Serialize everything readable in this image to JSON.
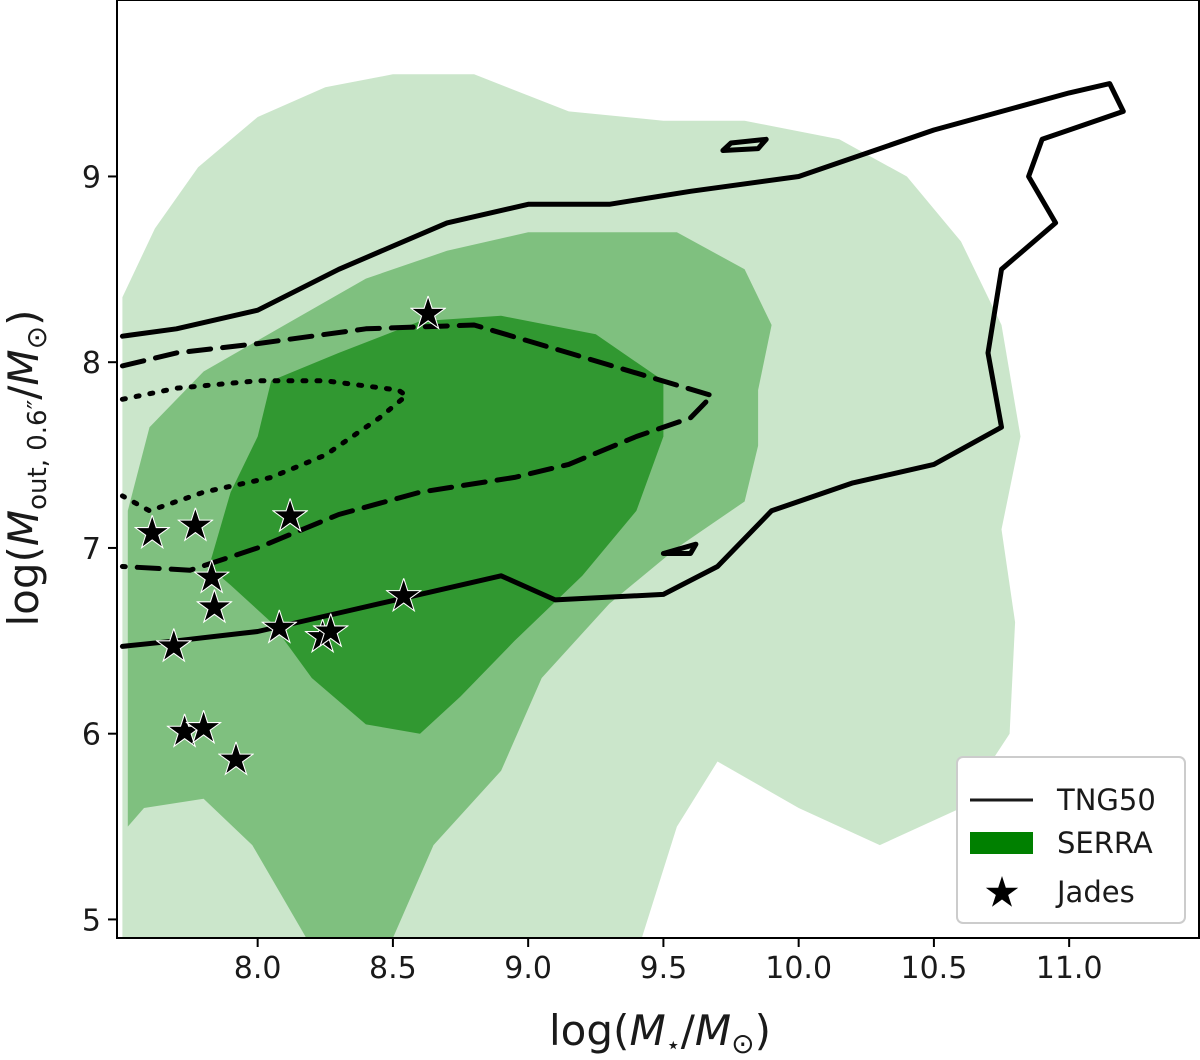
{
  "chart_data": {
    "type": "scatter",
    "xlabel": {
      "prefix": "log(",
      "var": "M",
      "sub": "⋆",
      "mid": "/",
      "var2": "M",
      "sub2": "⊙",
      "suffix": ")"
    },
    "ylabel": {
      "prefix": "log(",
      "var": "M",
      "sub": "out, 0.6″",
      "mid": "/",
      "var2": "M",
      "sub2": "⊙",
      "suffix": ")"
    },
    "xlim": [
      7.48,
      11.48
    ],
    "ylim": [
      4.9,
      9.95
    ],
    "x_ticks": [
      "8.0",
      "8.5",
      "9.0",
      "9.5",
      "10.0",
      "10.5",
      "11.0"
    ],
    "y_ticks": [
      "5",
      "6",
      "7",
      "8",
      "9"
    ],
    "grid": false,
    "legend_position": "lower-right",
    "legend": [
      {
        "label": "TNG50",
        "marker": "line",
        "color": "#1a1a1a"
      },
      {
        "label": "SERRA",
        "marker": "patch",
        "color": "#008000"
      },
      {
        "label": "Jades",
        "marker": "star",
        "color": "#000000"
      }
    ],
    "series": [
      {
        "name": "Jades",
        "marker": "star",
        "color": "#000000",
        "points": [
          [
            7.61,
            7.08
          ],
          [
            7.77,
            7.12
          ],
          [
            8.12,
            7.17
          ],
          [
            7.83,
            6.84
          ],
          [
            7.84,
            6.68
          ],
          [
            7.69,
            6.47
          ],
          [
            8.08,
            6.57
          ],
          [
            8.24,
            6.52
          ],
          [
            8.27,
            6.55
          ],
          [
            8.54,
            6.74
          ],
          [
            8.63,
            8.26
          ],
          [
            7.73,
            6.01
          ],
          [
            7.8,
            6.03
          ],
          [
            7.92,
            5.86
          ]
        ]
      },
      {
        "name": "SERRA",
        "type": "filled-contours",
        "levels": [
          {
            "fill": "#cbe6cb",
            "outline": [
              [
                7.5,
                4.9
              ],
              [
                7.5,
                8.35
              ],
              [
                7.62,
                8.72
              ],
              [
                7.78,
                9.05
              ],
              [
                8.0,
                9.32
              ],
              [
                8.25,
                9.48
              ],
              [
                8.5,
                9.55
              ],
              [
                8.8,
                9.55
              ],
              [
                9.15,
                9.35
              ],
              [
                9.5,
                9.3
              ],
              [
                9.8,
                9.3
              ],
              [
                10.15,
                9.2
              ],
              [
                10.4,
                9.0
              ],
              [
                10.6,
                8.65
              ],
              [
                10.75,
                8.2
              ],
              [
                10.82,
                7.6
              ],
              [
                10.75,
                7.1
              ],
              [
                10.8,
                6.6
              ],
              [
                10.78,
                6.0
              ],
              [
                10.6,
                5.6
              ],
              [
                10.3,
                5.4
              ],
              [
                10.0,
                5.6
              ],
              [
                9.7,
                5.85
              ],
              [
                9.55,
                5.5
              ],
              [
                9.42,
                4.9
              ]
            ]
          },
          {
            "fill": "#7fc07f",
            "outline": [
              [
                7.52,
                5.5
              ],
              [
                7.52,
                7.2
              ],
              [
                7.6,
                7.65
              ],
              [
                7.8,
                7.95
              ],
              [
                8.1,
                8.2
              ],
              [
                8.4,
                8.45
              ],
              [
                8.7,
                8.6
              ],
              [
                9.0,
                8.7
              ],
              [
                9.3,
                8.7
              ],
              [
                9.55,
                8.7
              ],
              [
                9.8,
                8.5
              ],
              [
                9.9,
                8.2
              ],
              [
                9.85,
                7.85
              ],
              [
                9.85,
                7.55
              ],
              [
                9.8,
                7.25
              ],
              [
                9.55,
                7.0
              ],
              [
                9.3,
                6.7
              ],
              [
                9.05,
                6.3
              ],
              [
                8.9,
                5.8
              ],
              [
                8.65,
                5.4
              ],
              [
                8.5,
                4.9
              ],
              [
                8.18,
                4.9
              ],
              [
                7.98,
                5.4
              ],
              [
                7.8,
                5.65
              ],
              [
                7.58,
                5.6
              ]
            ]
          },
          {
            "fill": "#319831",
            "outline": [
              [
                7.82,
                6.9
              ],
              [
                7.9,
                7.3
              ],
              [
                8.0,
                7.6
              ],
              [
                8.05,
                7.9
              ],
              [
                8.3,
                8.05
              ],
              [
                8.6,
                8.22
              ],
              [
                8.9,
                8.25
              ],
              [
                9.25,
                8.15
              ],
              [
                9.5,
                7.9
              ],
              [
                9.5,
                7.6
              ],
              [
                9.4,
                7.2
              ],
              [
                9.2,
                6.85
              ],
              [
                8.95,
                6.5
              ],
              [
                8.75,
                6.2
              ],
              [
                8.6,
                6.0
              ],
              [
                8.4,
                6.05
              ],
              [
                8.2,
                6.3
              ],
              [
                8.05,
                6.6
              ],
              [
                7.9,
                6.8
              ]
            ]
          }
        ]
      },
      {
        "name": "TNG50",
        "type": "line-contours",
        "color": "#000000",
        "contours": [
          {
            "style": "solid",
            "points": [
              [
                7.5,
                8.14
              ],
              [
                7.7,
                8.18
              ],
              [
                8.0,
                8.28
              ],
              [
                8.3,
                8.5
              ],
              [
                8.7,
                8.75
              ],
              [
                9.0,
                8.85
              ],
              [
                9.3,
                8.85
              ],
              [
                9.6,
                8.92
              ],
              [
                10.0,
                9.0
              ],
              [
                10.5,
                9.25
              ],
              [
                11.0,
                9.45
              ],
              [
                11.15,
                9.5
              ],
              [
                11.2,
                9.35
              ],
              [
                10.9,
                9.2
              ],
              [
                10.85,
                9.0
              ],
              [
                10.95,
                8.75
              ],
              [
                10.75,
                8.5
              ],
              [
                10.7,
                8.05
              ],
              [
                10.75,
                7.65
              ],
              [
                10.5,
                7.45
              ],
              [
                10.2,
                7.35
              ],
              [
                9.9,
                7.2
              ],
              [
                9.7,
                6.9
              ],
              [
                9.5,
                6.75
              ],
              [
                9.1,
                6.72
              ],
              [
                8.9,
                6.85
              ],
              [
                8.6,
                6.75
              ],
              [
                8.3,
                6.65
              ],
              [
                8.0,
                6.55
              ],
              [
                7.7,
                6.5
              ],
              [
                7.5,
                6.47
              ]
            ]
          },
          {
            "style": "solid",
            "points": [
              [
                9.75,
                9.18
              ],
              [
                9.88,
                9.2
              ],
              [
                9.85,
                9.15
              ],
              [
                9.72,
                9.14
              ],
              [
                9.75,
                9.18
              ]
            ]
          },
          {
            "style": "solid",
            "points": [
              [
                9.5,
                6.97
              ],
              [
                9.62,
                7.02
              ],
              [
                9.6,
                6.97
              ],
              [
                9.5,
                6.97
              ]
            ]
          },
          {
            "style": "dashed",
            "points": [
              [
                7.5,
                7.98
              ],
              [
                7.7,
                8.05
              ],
              [
                8.0,
                8.1
              ],
              [
                8.4,
                8.18
              ],
              [
                8.8,
                8.2
              ],
              [
                9.15,
                8.05
              ],
              [
                9.45,
                7.92
              ],
              [
                9.68,
                7.82
              ],
              [
                9.6,
                7.7
              ],
              [
                9.4,
                7.6
              ],
              [
                9.15,
                7.45
              ],
              [
                8.95,
                7.38
              ],
              [
                8.6,
                7.3
              ],
              [
                8.3,
                7.18
              ],
              [
                8.0,
                7.0
              ],
              [
                7.75,
                6.88
              ],
              [
                7.5,
                6.9
              ]
            ]
          },
          {
            "style": "dotted",
            "points": [
              [
                7.5,
                7.8
              ],
              [
                7.7,
                7.86
              ],
              [
                8.0,
                7.9
              ],
              [
                8.25,
                7.9
              ],
              [
                8.52,
                7.85
              ],
              [
                8.55,
                7.82
              ],
              [
                8.45,
                7.7
              ],
              [
                8.25,
                7.5
              ],
              [
                8.05,
                7.38
              ],
              [
                7.8,
                7.3
              ],
              [
                7.6,
                7.2
              ],
              [
                7.5,
                7.28
              ]
            ]
          }
        ]
      }
    ]
  }
}
